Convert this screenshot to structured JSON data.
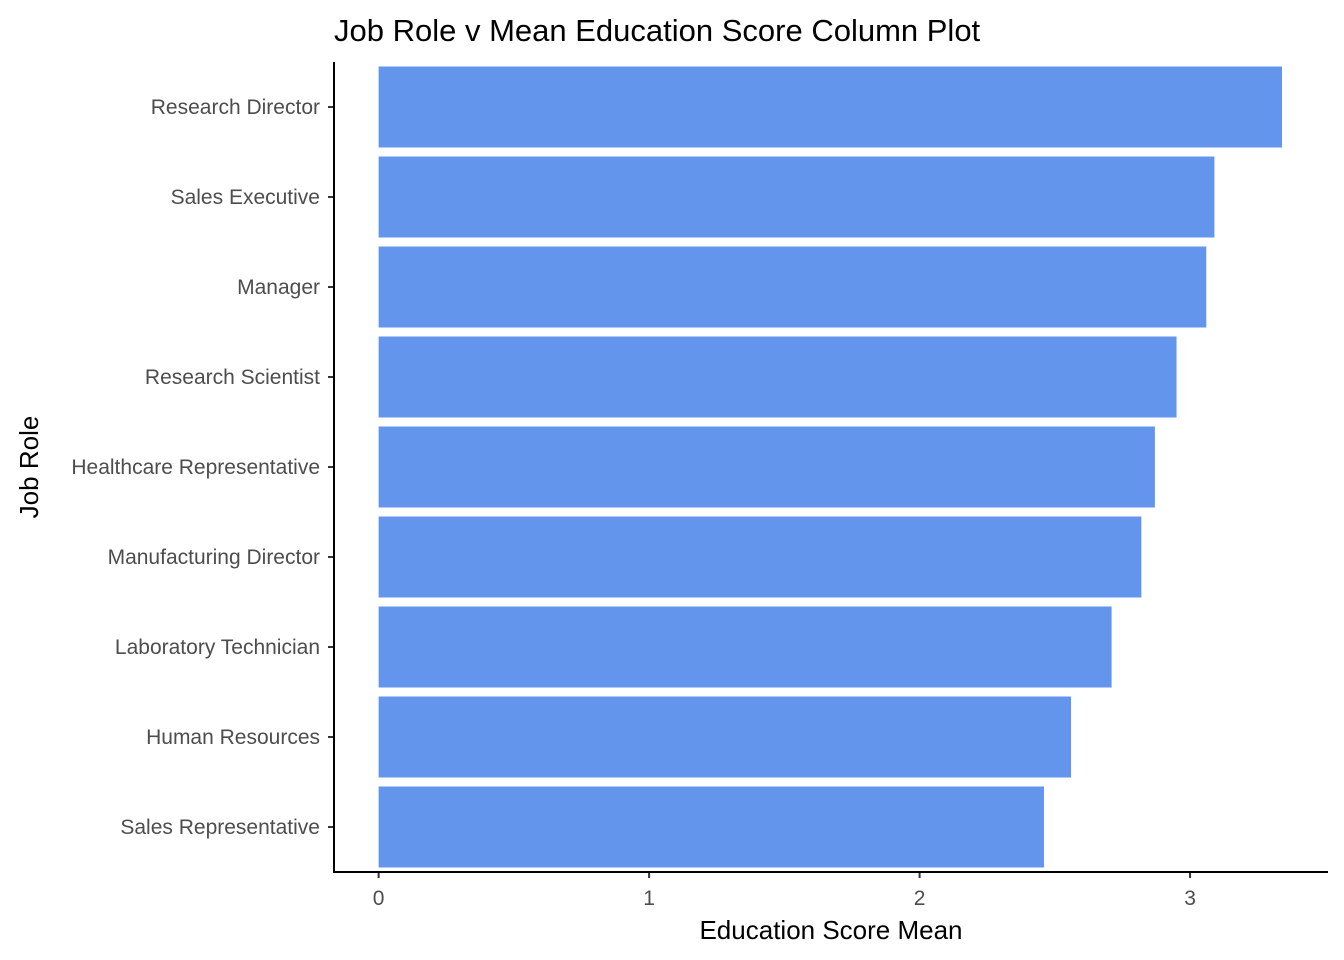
{
  "chart_data": {
    "type": "bar",
    "orientation": "horizontal",
    "title": "Job Role v Mean Education Score Column Plot",
    "xlabel": "Education Score Mean",
    "ylabel": "Job Role",
    "categories": [
      "Research Director",
      "Sales Executive",
      "Manager",
      "Research Scientist",
      "Healthcare Representative",
      "Manufacturing Director",
      "Laboratory Technician",
      "Human Resources",
      "Sales Representative"
    ],
    "values": [
      3.34,
      3.09,
      3.06,
      2.95,
      2.87,
      2.82,
      2.71,
      2.56,
      2.46
    ],
    "xlim": [
      -0.165,
      3.51
    ],
    "xticks": [
      0,
      1,
      2,
      3
    ],
    "xtick_labels": [
      "0",
      "1",
      "2",
      "3"
    ],
    "bar_color": "#6495ED",
    "grid": false,
    "legend": "none"
  }
}
